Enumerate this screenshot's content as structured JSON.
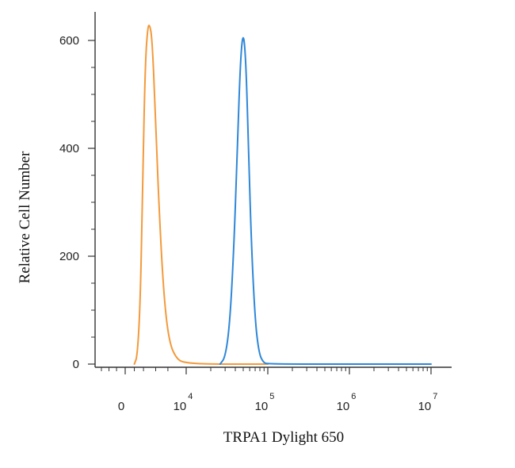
{
  "chart_data": {
    "type": "line",
    "xlabel": "TRPA1 Dylight 650",
    "ylabel": "Relative Cell Number",
    "x_scale": "biexponential",
    "x_ticks": [
      {
        "base": "0",
        "exp": ""
      },
      {
        "base": "10",
        "exp": "4"
      },
      {
        "base": "10",
        "exp": "5"
      },
      {
        "base": "10",
        "exp": "6"
      },
      {
        "base": "10",
        "exp": "7"
      }
    ],
    "y_ticks": [
      "0",
      "200",
      "400",
      "600"
    ],
    "ylim": [
      0,
      650
    ],
    "grid": false,
    "legend": "none",
    "series": [
      {
        "color": "#F39A3B",
        "peak_x": 4000,
        "peak_y": 630,
        "points": [
          [
            1500,
            0
          ],
          [
            2000,
            15
          ],
          [
            2500,
            120
          ],
          [
            2900,
            360
          ],
          [
            3300,
            560
          ],
          [
            3700,
            625
          ],
          [
            4000,
            630
          ],
          [
            4400,
            605
          ],
          [
            4900,
            480
          ],
          [
            5500,
            300
          ],
          [
            6300,
            130
          ],
          [
            7200,
            40
          ],
          [
            8500,
            8
          ],
          [
            10000,
            2
          ],
          [
            20000,
            0
          ],
          [
            50000,
            0
          ],
          [
            100000,
            0
          ]
        ]
      },
      {
        "color": "#2E87D8",
        "peak_x": 50000,
        "peak_y": 620,
        "points": [
          [
            26000,
            0
          ],
          [
            30000,
            12
          ],
          [
            34000,
            70
          ],
          [
            38000,
            200
          ],
          [
            42000,
            380
          ],
          [
            46000,
            560
          ],
          [
            50000,
            620
          ],
          [
            54000,
            560
          ],
          [
            58000,
            400
          ],
          [
            63000,
            220
          ],
          [
            70000,
            80
          ],
          [
            78000,
            20
          ],
          [
            88000,
            3
          ],
          [
            100000,
            0
          ],
          [
            1000000,
            0
          ],
          [
            10000000,
            0
          ]
        ]
      }
    ]
  }
}
